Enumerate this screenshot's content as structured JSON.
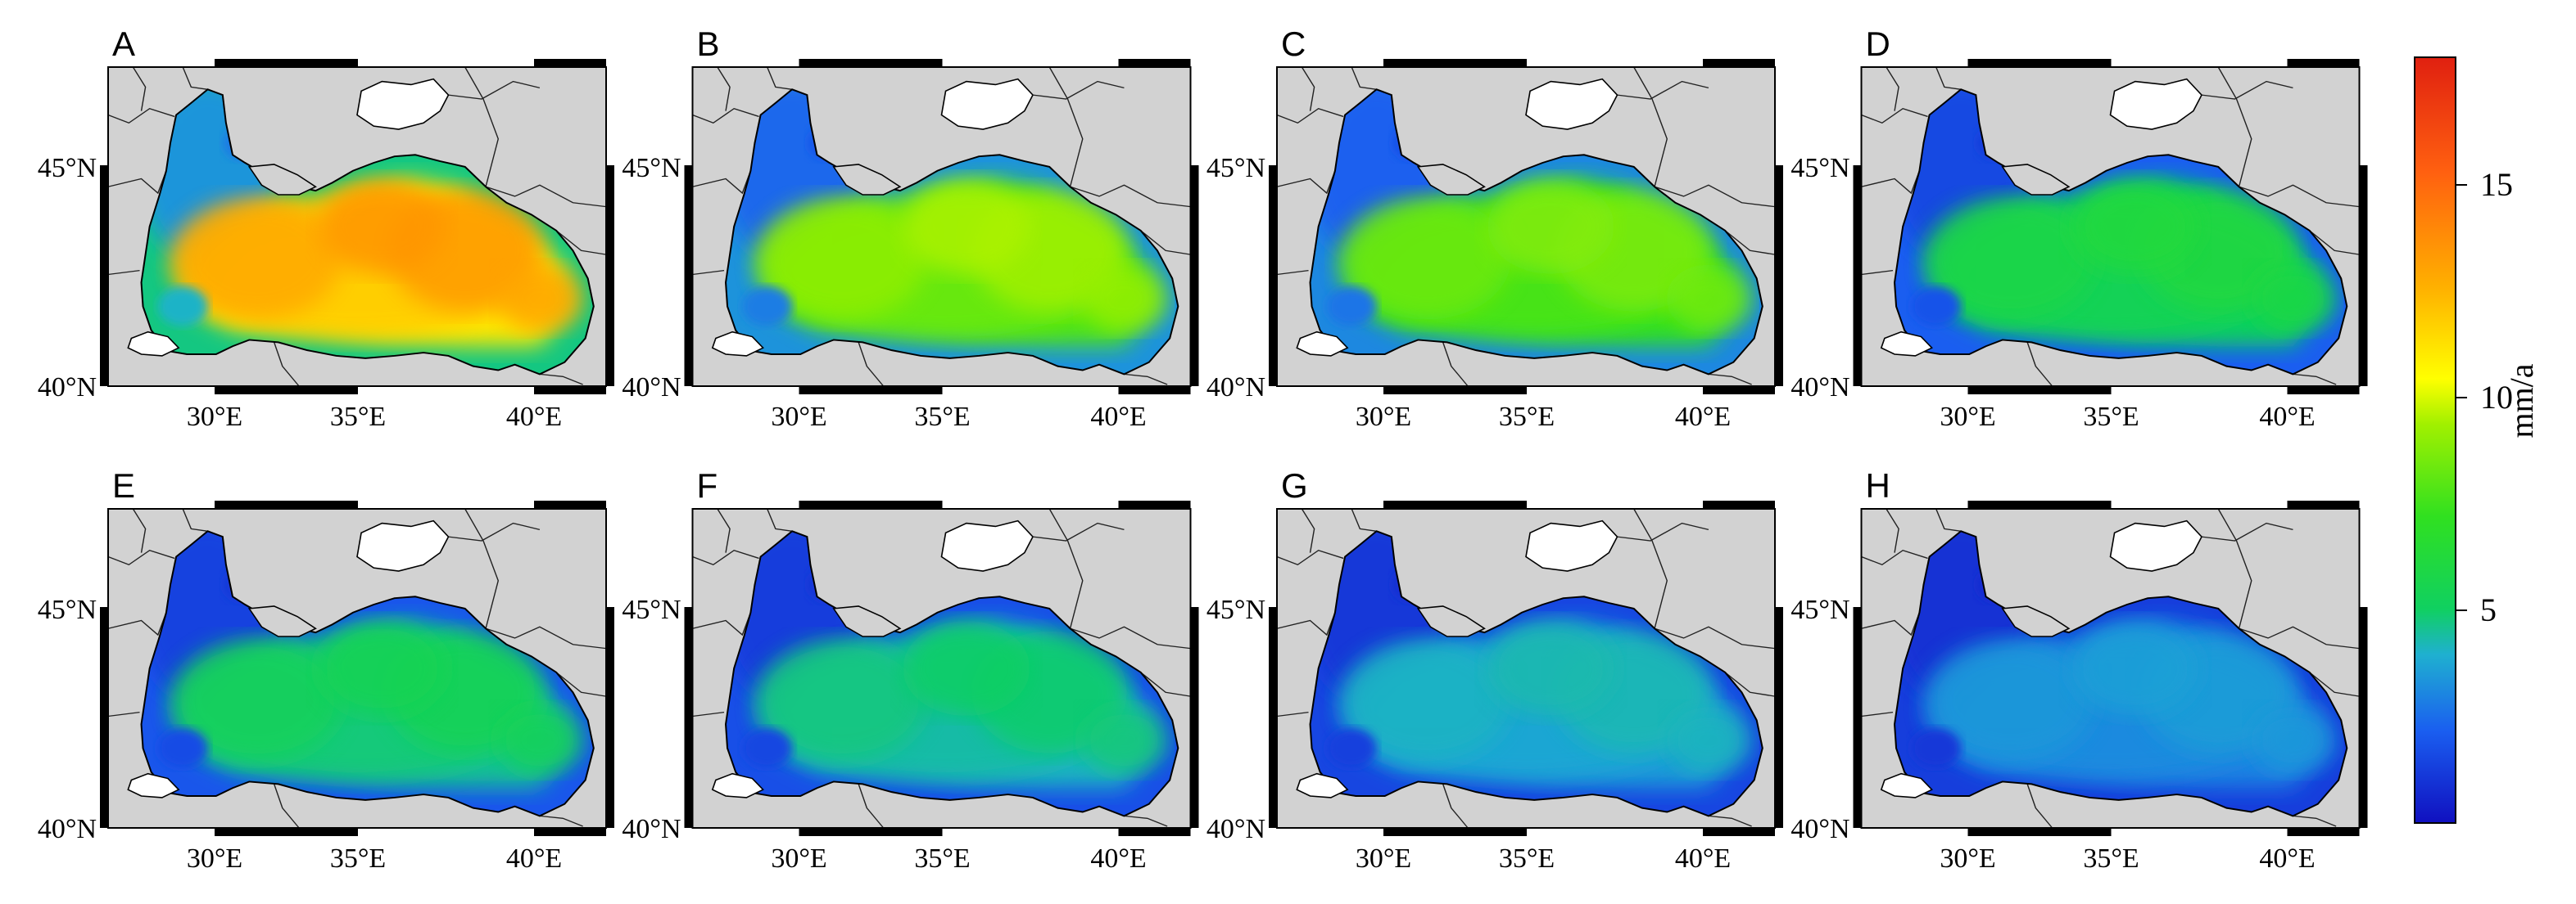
{
  "figure": {
    "panels": [
      {
        "label": "A",
        "level": 13.5
      },
      {
        "label": "B",
        "level": 9.5
      },
      {
        "label": "C",
        "level": 8.8
      },
      {
        "label": "D",
        "level": 6.2
      },
      {
        "label": "E",
        "level": 5.5
      },
      {
        "label": "F",
        "level": 5.0
      },
      {
        "label": "G",
        "level": 4.3
      },
      {
        "label": "H",
        "level": 3.6
      }
    ],
    "lat_ticks": [
      "45°N",
      "40°N"
    ],
    "lon_ticks": [
      "30°E",
      "35°E",
      "40°E"
    ],
    "colorbar": {
      "label": "mm/a",
      "ticks": [
        "15",
        "10",
        "5"
      ],
      "min": 0,
      "max": 18,
      "colors": [
        "#1010c0",
        "#1a5ef0",
        "#1fb0d0",
        "#10d060",
        "#30e020",
        "#a0f000",
        "#ffff00",
        "#ffb000",
        "#ff6010",
        "#e02010"
      ]
    },
    "colors": {
      "land": "#d2d2d2",
      "sea_deep_shelf": "#1515cc",
      "coast": "#000000",
      "frame_bar": "#000000"
    }
  }
}
